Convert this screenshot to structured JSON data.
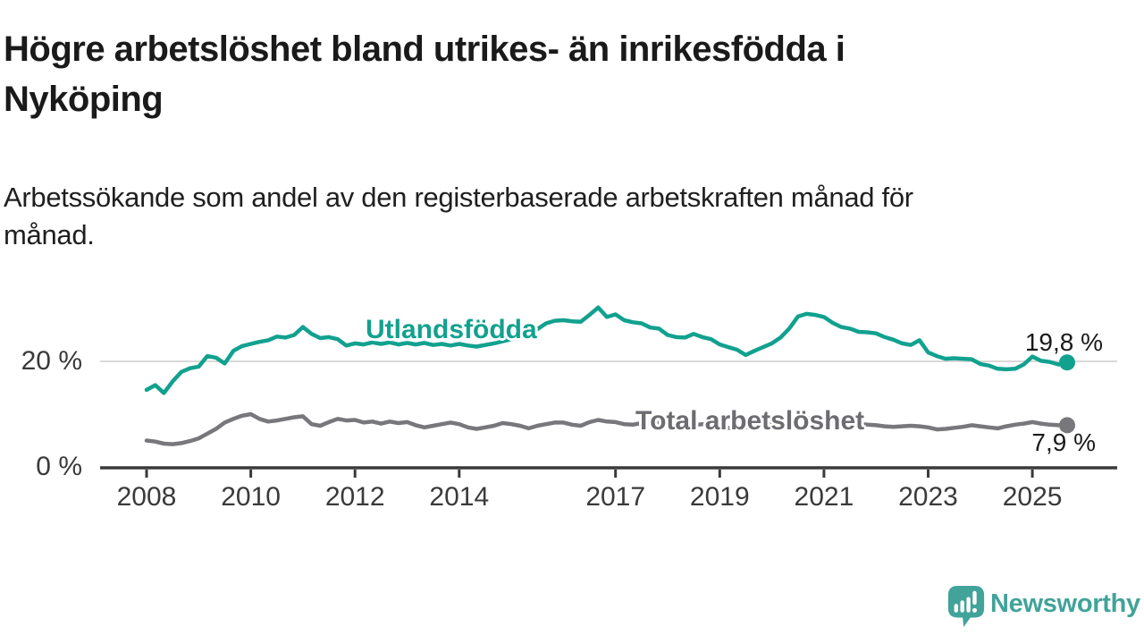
{
  "title": {
    "lines": [
      "Högre arbetslöshet bland utrikes- än inrikesfödda i",
      "Nyköping"
    ]
  },
  "subtitle": {
    "lines": [
      "Arbetssökande som andel av den registerbaserade arbetskraften månad för",
      "månad."
    ]
  },
  "branding": {
    "logo_text": "Newsworthy",
    "logo_color": "#41a39a",
    "logo_icon": "newsworthy-speech-bubble-barchart-icon"
  },
  "colors": {
    "accent_teal": "#12a18f",
    "series_gray": "#77777c",
    "label_gray": "#6c6c71",
    "axis_dark": "#3a3a3a",
    "gridline_light": "#d9d9d9",
    "text_dark": "#1a1a1a"
  },
  "chart_data": {
    "type": "line",
    "title": "Högre arbetslöshet bland utrikes- än inrikesfödda i Nyköping",
    "subtitle": "Arbetssökande som andel av den registerbaserade arbetskraften månad för månad.",
    "unit": "%",
    "grid": "y-gridline-at-20-only",
    "legend_position": "inline-labels-on-lines",
    "ylim": [
      0,
      32
    ],
    "x_start_year": 2008.0,
    "x_step_years": 0.1667,
    "x_end_year": 2025.67,
    "y_ticks": [
      {
        "label": "20 %",
        "value": 20
      },
      {
        "label": "0 %",
        "value": 0
      }
    ],
    "x_ticks": [
      {
        "label": "2008",
        "year": 2008
      },
      {
        "label": "2010",
        "year": 2010
      },
      {
        "label": "2012",
        "year": 2012
      },
      {
        "label": "2014",
        "year": 2014
      },
      {
        "label": "2017",
        "year": 2017
      },
      {
        "label": "2019",
        "year": 2019
      },
      {
        "label": "2021",
        "year": 2021
      },
      {
        "label": "2023",
        "year": 2023
      },
      {
        "label": "2025",
        "year": 2025
      }
    ],
    "series": [
      {
        "name": "Utlandsfödda",
        "color": "#12a18f",
        "end_label": "19,8 %",
        "end_value": 19.8,
        "values": [
          14.6,
          15.5,
          14.0,
          16.2,
          18.0,
          18.7,
          19.0,
          21.0,
          20.7,
          19.6,
          22.0,
          22.9,
          23.3,
          23.7,
          24.0,
          24.7,
          24.5,
          25.0,
          26.5,
          25.2,
          24.4,
          24.6,
          24.2,
          23.0,
          23.4,
          23.2,
          23.6,
          23.3,
          23.6,
          23.2,
          23.5,
          23.2,
          23.5,
          23.1,
          23.3,
          23.0,
          23.3,
          23.0,
          22.8,
          23.1,
          23.4,
          23.8,
          24.2,
          24.7,
          25.3,
          26.1,
          27.2,
          27.7,
          27.8,
          27.6,
          27.5,
          28.8,
          30.2,
          28.4,
          28.9,
          27.8,
          27.4,
          27.2,
          26.4,
          26.2,
          25.0,
          24.6,
          24.5,
          25.2,
          24.6,
          24.2,
          23.2,
          22.7,
          22.2,
          21.2,
          22.0,
          22.7,
          23.4,
          24.5,
          26.2,
          28.5,
          29.0,
          28.8,
          28.4,
          27.3,
          26.5,
          26.2,
          25.6,
          25.5,
          25.3,
          24.6,
          24.1,
          23.4,
          23.1,
          24.0,
          21.7,
          21.0,
          20.5,
          20.6,
          20.5,
          20.4,
          19.5,
          19.2,
          18.6,
          18.5,
          18.6,
          19.4,
          20.9,
          20.1,
          19.9,
          19.4,
          19.8
        ]
      },
      {
        "name": "Total arbetslöshet",
        "color": "#77777c",
        "label_color": "#6c6c71",
        "end_label": "7,9 %",
        "end_value": 7.9,
        "values": [
          5.0,
          4.8,
          4.4,
          4.3,
          4.5,
          4.9,
          5.4,
          6.3,
          7.2,
          8.4,
          9.1,
          9.7,
          10.0,
          9.1,
          8.6,
          8.8,
          9.1,
          9.4,
          9.6,
          8.1,
          7.8,
          8.5,
          9.1,
          8.8,
          8.9,
          8.4,
          8.6,
          8.2,
          8.6,
          8.3,
          8.5,
          7.9,
          7.5,
          7.8,
          8.1,
          8.4,
          8.1,
          7.5,
          7.2,
          7.5,
          7.8,
          8.3,
          8.1,
          7.8,
          7.3,
          7.8,
          8.1,
          8.4,
          8.4,
          8.0,
          7.8,
          8.5,
          8.9,
          8.6,
          8.5,
          8.1,
          8.0,
          8.3,
          8.5,
          8.3,
          8.1,
          7.8,
          7.6,
          7.9,
          8.1,
          7.9,
          7.7,
          7.4,
          7.2,
          7.5,
          7.7,
          7.9,
          8.2,
          8.7,
          9.2,
          9.4,
          9.3,
          9.1,
          8.9,
          8.6,
          8.3,
          8.4,
          8.2,
          8.0,
          7.9,
          7.7,
          7.6,
          7.7,
          7.8,
          7.7,
          7.5,
          7.1,
          7.2,
          7.4,
          7.6,
          7.9,
          7.7,
          7.5,
          7.3,
          7.7,
          8.0,
          8.2,
          8.5,
          8.2,
          8.0,
          7.9,
          7.9
        ]
      }
    ]
  }
}
